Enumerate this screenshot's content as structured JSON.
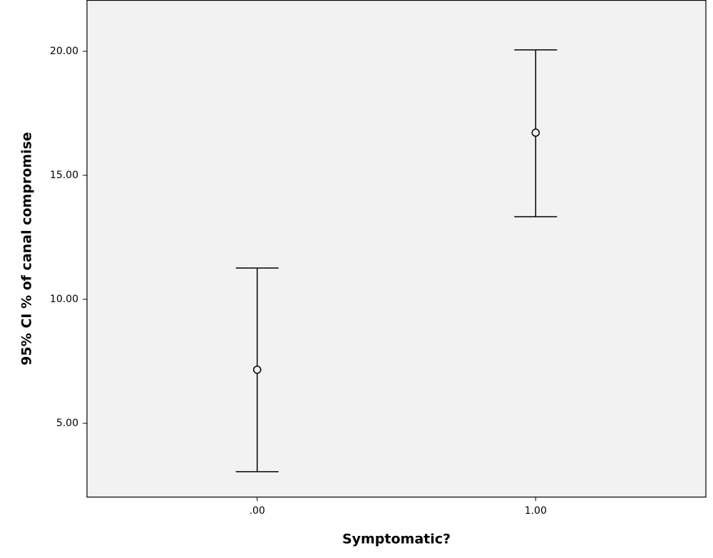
{
  "chart_data": {
    "type": "errorbar",
    "xlabel": "Symptomatic?",
    "ylabel": "95% CI % of canal compromise",
    "categories": [
      ".00",
      "1.00"
    ],
    "values": [
      7.16,
      16.72
    ],
    "lower": [
      3.05,
      13.33
    ],
    "upper": [
      11.26,
      20.06
    ],
    "color": "#000000",
    "plot_background": "#f2f2f2",
    "ylim": [
      2.04,
      22.07
    ],
    "yticks": [
      {
        "value": 5,
        "label": "5.00"
      },
      {
        "value": 10,
        "label": "10.00"
      },
      {
        "value": 15,
        "label": "15.00"
      },
      {
        "value": 20,
        "label": "20.00"
      }
    ]
  }
}
